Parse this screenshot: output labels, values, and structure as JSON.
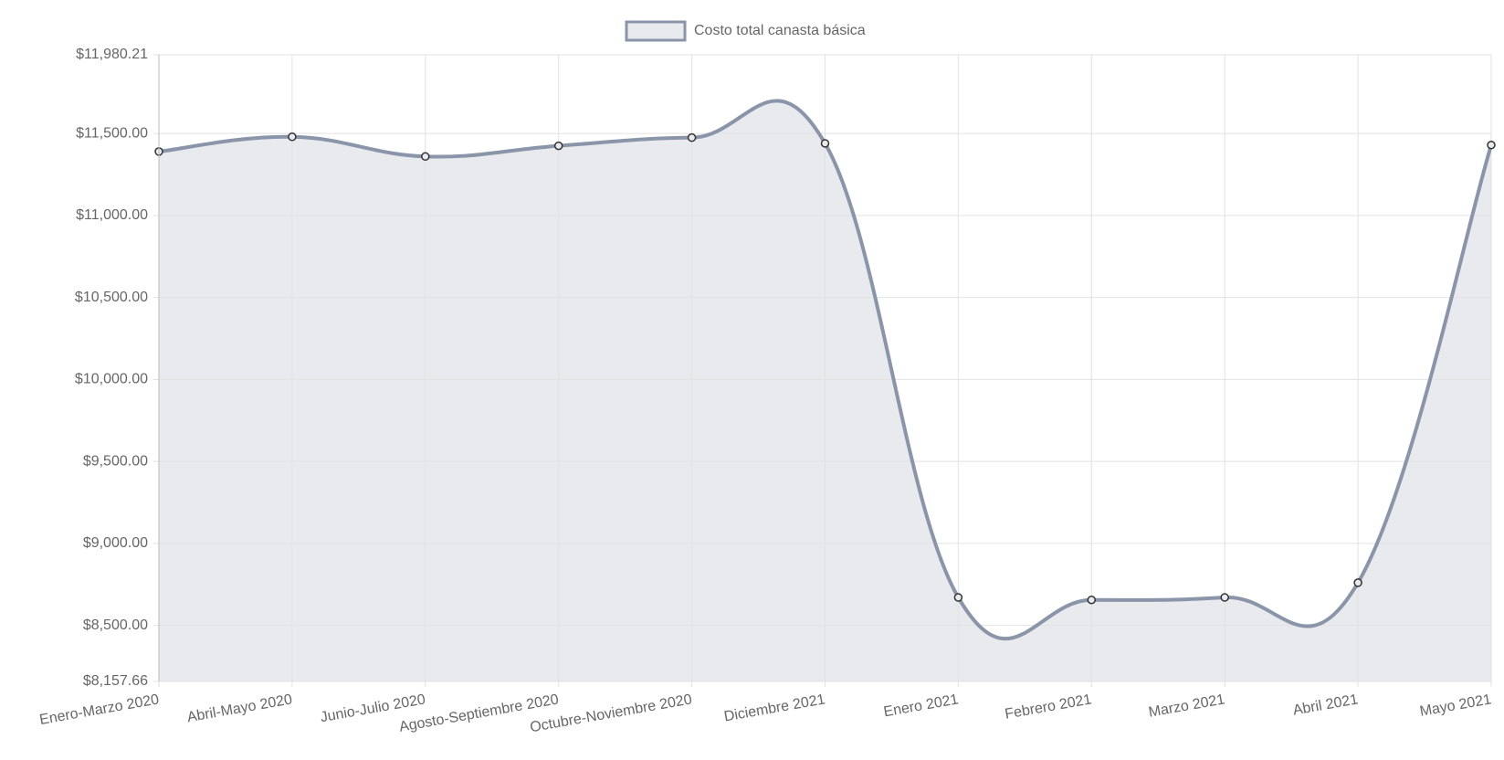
{
  "chart_data": {
    "type": "line",
    "categories": [
      "Enero-Marzo 2020",
      "Abril-Mayo 2020",
      "Junio-Julio 2020",
      "Agosto-Septiembre 2020",
      "Octubre-Noviembre 2020",
      "Diciembre 2021",
      "Enero 2021",
      "Febrero 2021",
      "Marzo 2021",
      "Abril 2021",
      "Mayo 2021"
    ],
    "series": [
      {
        "name": "Costo total canasta básica",
        "color": "#8a95aa",
        "fill": "#e9eaee",
        "values": [
          11390,
          11480,
          11360,
          11425,
          11475,
          11440,
          8670,
          8655,
          8670,
          8760,
          11430
        ]
      }
    ],
    "ylim": [
      8157.66,
      11980.21
    ],
    "yticks": [
      {
        "value": 8157.66,
        "label": "$8,157.66"
      },
      {
        "value": 8500,
        "label": "$8,500.00"
      },
      {
        "value": 9000,
        "label": "$9,000.00"
      },
      {
        "value": 9500,
        "label": "$9,500.00"
      },
      {
        "value": 10000,
        "label": "$10,000.00"
      },
      {
        "value": 10500,
        "label": "$10,500.00"
      },
      {
        "value": 11000,
        "label": "$11,000.00"
      },
      {
        "value": 11500,
        "label": "$11,500.00"
      },
      {
        "value": 11980.21,
        "label": "$11,980.21"
      }
    ],
    "grid": true,
    "legend": "top"
  }
}
